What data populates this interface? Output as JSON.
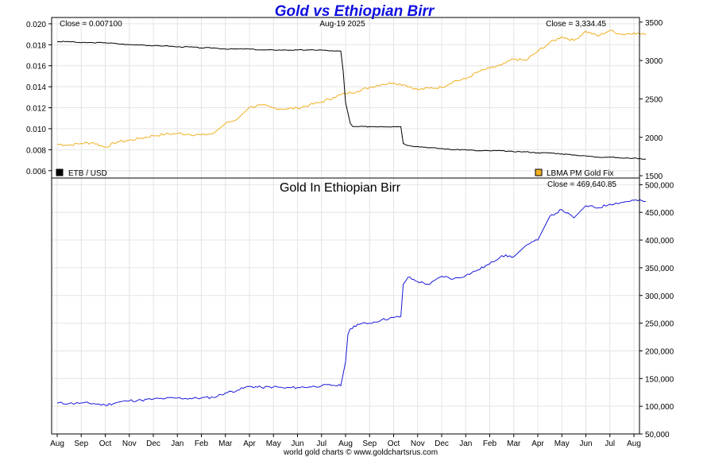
{
  "chart_data": {
    "title": "Gold vs Ethiopian Birr",
    "date_label": "Aug-19  2025",
    "footer": "world gold charts © www.goldchartsrus.com",
    "x_ticks": [
      "Aug",
      "Sep",
      "Oct",
      "Nov",
      "Dec",
      "Jan",
      "Feb",
      "Mar",
      "Apr",
      "May",
      "Jun",
      "Jul",
      "Aug",
      "Sep",
      "Oct",
      "Nov",
      "Dec",
      "Jan",
      "Feb",
      "Mar",
      "Apr",
      "May",
      "Jun",
      "Jul",
      "Aug"
    ],
    "top_panel": {
      "type": "line",
      "left_axis": {
        "ticks": [
          "0.020",
          "0.018",
          "0.016",
          "0.014",
          "0.012",
          "0.010",
          "0.008",
          "0.006"
        ],
        "ylim": [
          0.0053,
          0.0206
        ]
      },
      "right_axis": {
        "ticks": [
          "3500",
          "3000",
          "2500",
          "2000",
          "1500"
        ],
        "ylim": [
          1470,
          3560
        ]
      },
      "close_left": "Close = 0.007100",
      "close_right": "Close = 3,334.45",
      "legend_left": "ETB / USD",
      "legend_right": "LBMA PM Gold Fix",
      "series": [
        {
          "name": "ETB / USD",
          "axis": "left",
          "color": "#000000",
          "x": [
            0,
            0.5,
            1,
            1.5,
            2,
            2.5,
            3,
            3.5,
            4,
            4.5,
            5,
            5.5,
            6,
            6.5,
            7,
            7.5,
            8,
            8.5,
            9,
            9.5,
            10,
            10.5,
            11,
            11.5,
            11.8,
            11.9,
            12,
            12.1,
            12.2,
            12.3,
            12.5,
            13,
            13.5,
            14,
            14.3,
            14.4,
            14.6,
            15,
            15.5,
            16,
            16.5,
            17,
            17.5,
            18,
            18.5,
            19,
            19.5,
            20,
            20.5,
            21,
            21.5,
            22,
            22.5,
            23,
            23.5,
            24,
            24.5
          ],
          "y": [
            0.0183,
            0.0183,
            0.0182,
            0.0182,
            0.0182,
            0.0181,
            0.018,
            0.018,
            0.0179,
            0.0179,
            0.0178,
            0.0178,
            0.0177,
            0.0177,
            0.0176,
            0.0176,
            0.0176,
            0.0175,
            0.0175,
            0.0175,
            0.0175,
            0.0175,
            0.0175,
            0.0174,
            0.0174,
            0.0155,
            0.0125,
            0.0115,
            0.0105,
            0.0102,
            0.0102,
            0.0102,
            0.0102,
            0.0102,
            0.0102,
            0.0086,
            0.0084,
            0.0083,
            0.0082,
            0.0081,
            0.008,
            0.008,
            0.0079,
            0.0079,
            0.0079,
            0.0078,
            0.0078,
            0.0077,
            0.0077,
            0.0076,
            0.0075,
            0.0074,
            0.0073,
            0.0073,
            0.0072,
            0.0072,
            0.0071
          ]
        },
        {
          "name": "LBMA PM Gold Fix",
          "axis": "right",
          "color": "#f0b020",
          "x": [
            0,
            0.5,
            1,
            1.5,
            2,
            2.5,
            3,
            3.5,
            4,
            4.5,
            5,
            5.5,
            6,
            6.5,
            7,
            7.5,
            8,
            8.5,
            9,
            9.5,
            10,
            10.5,
            11,
            11.5,
            12,
            12.5,
            13,
            13.5,
            14,
            14.5,
            15,
            15.5,
            16,
            16.5,
            17,
            17.5,
            18,
            18.5,
            19,
            19.5,
            20,
            20.5,
            21,
            21.5,
            22,
            22.5,
            23,
            23.5,
            24,
            24.5
          ],
          "y": [
            1910,
            1900,
            1920,
            1930,
            1870,
            1940,
            1960,
            1990,
            2020,
            2040,
            2050,
            2040,
            2030,
            2050,
            2180,
            2240,
            2390,
            2420,
            2380,
            2370,
            2380,
            2420,
            2460,
            2520,
            2570,
            2600,
            2650,
            2690,
            2710,
            2680,
            2620,
            2640,
            2650,
            2730,
            2760,
            2850,
            2900,
            2940,
            3020,
            3000,
            3120,
            3230,
            3310,
            3260,
            3380,
            3320,
            3390,
            3340,
            3360,
            3334
          ]
        }
      ]
    },
    "bottom_panel": {
      "type": "line",
      "subtitle": "Gold In Ethiopian Birr",
      "close_label": "Close = 469,640.85",
      "right_axis": {
        "ticks": [
          "500,000",
          "450,000",
          "400,000",
          "350,000",
          "300,000",
          "250,000",
          "200,000",
          "150,000",
          "100,000",
          "50,000"
        ],
        "ylim": [
          50000,
          512000
        ]
      },
      "series": [
        {
          "name": "Gold In Ethiopian Birr",
          "axis": "right",
          "color": "#1a1adc",
          "x": [
            0,
            0.5,
            1,
            1.5,
            2,
            2.5,
            3,
            3.5,
            4,
            4.5,
            5,
            5.5,
            6,
            6.5,
            7,
            7.5,
            8,
            8.5,
            9,
            9.5,
            10,
            10.5,
            11,
            11.5,
            11.8,
            12,
            12.1,
            12.2,
            12.5,
            13,
            13.5,
            14,
            14.3,
            14.4,
            14.6,
            15,
            15.5,
            16,
            16.5,
            17,
            17.5,
            18,
            18.5,
            19,
            19.5,
            20,
            20.5,
            21,
            21.5,
            22,
            22.5,
            23,
            23.5,
            24,
            24.5
          ],
          "y": [
            106000,
            105000,
            106000,
            105000,
            102000,
            107000,
            110000,
            111000,
            113000,
            114000,
            115000,
            114000,
            115000,
            116000,
            124000,
            129000,
            136000,
            134000,
            135000,
            133000,
            134000,
            135000,
            137000,
            138000,
            137000,
            180000,
            230000,
            240000,
            248000,
            250000,
            256000,
            260000,
            262000,
            320000,
            333000,
            325000,
            320000,
            335000,
            330000,
            336000,
            346000,
            357000,
            372000,
            370000,
            390000,
            400000,
            443000,
            455000,
            440000,
            462000,
            458000,
            465000,
            468000,
            472000,
            469641
          ]
        }
      ]
    }
  }
}
